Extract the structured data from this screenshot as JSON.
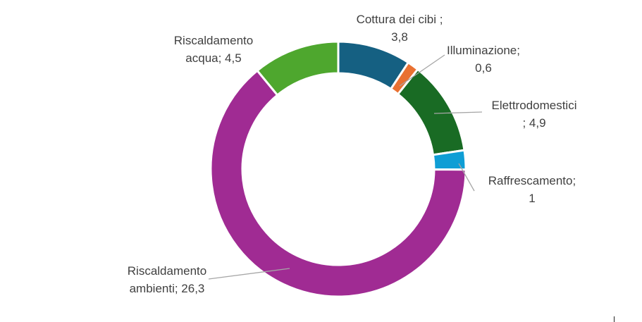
{
  "chart_data": {
    "type": "pie",
    "variant": "donut",
    "title": "",
    "legend": "none",
    "slices": [
      {
        "label": "Cottura dei cibi",
        "value": 3.8,
        "color": "#156082",
        "label_lines": [
          "Cottura dei cibi ;",
          "3,8"
        ]
      },
      {
        "label": "Illuminazione",
        "value": 0.6,
        "color": "#e97132",
        "label_lines": [
          "Illuminazione;",
          "0,6"
        ]
      },
      {
        "label": "Elettrodomestici",
        "value": 4.9,
        "color": "#196b24",
        "label_lines": [
          "Elettrodomestici",
          "; 4,9"
        ]
      },
      {
        "label": "Raffrescamento",
        "value": 1,
        "color": "#0f9ed5",
        "label_lines": [
          "Raffrescamento;",
          "1"
        ]
      },
      {
        "label": "Riscaldamento ambienti",
        "value": 26.3,
        "color": "#a02b93",
        "label_lines": [
          "Riscaldamento",
          "ambienti; 26,3"
        ]
      },
      {
        "label": "Riscaldamento acqua",
        "value": 4.5,
        "color": "#4ea72e",
        "label_lines": [
          "Riscaldamento",
          "acqua; 4,5"
        ]
      }
    ]
  }
}
